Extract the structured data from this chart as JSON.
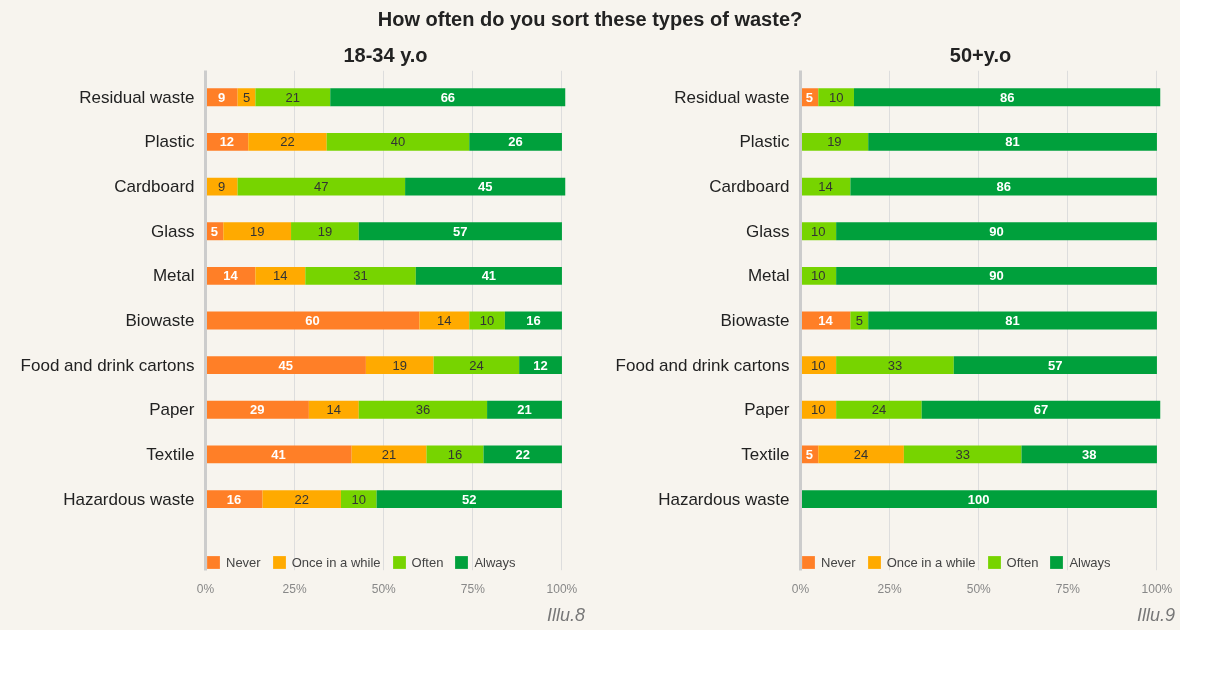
{
  "chart_data": [
    {
      "type": "bar",
      "orientation": "horizontal",
      "stacked": true,
      "title": "How often do you sort these types of waste?",
      "subtitle": "18-34 y.o",
      "categories": [
        "Residual waste",
        "Plastic",
        "Cardboard",
        "Glass",
        "Metal",
        "Biowaste",
        "Food and drink cartons",
        "Paper",
        "Textile",
        "Hazardous waste"
      ],
      "series": [
        {
          "name": "Never",
          "color": "#ff7f27",
          "values": [
            9,
            12,
            null,
            5,
            14,
            60,
            45,
            29,
            41,
            16
          ]
        },
        {
          "name": "Once in a while",
          "color": "#ffaa00",
          "values": [
            5,
            22,
            9,
            19,
            14,
            14,
            19,
            14,
            21,
            22
          ]
        },
        {
          "name": "Often",
          "color": "#77d400",
          "values": [
            21,
            40,
            47,
            19,
            31,
            10,
            24,
            36,
            16,
            10
          ]
        },
        {
          "name": "Always",
          "color": "#00a03c",
          "values": [
            66,
            26,
            45,
            57,
            41,
            16,
            12,
            21,
            22,
            52
          ]
        }
      ],
      "xlim": [
        0,
        101
      ],
      "xticks": [
        {
          "value": 0,
          "label": "0%"
        },
        {
          "value": 25,
          "label": "25%"
        },
        {
          "value": 50,
          "label": "50%"
        },
        {
          "value": 75,
          "label": "75%"
        },
        {
          "value": 100,
          "label": "100%"
        }
      ],
      "grid": "x",
      "legend": "bottom",
      "data_labels": true,
      "annotations": [
        "Illu.8"
      ]
    },
    {
      "type": "bar",
      "orientation": "horizontal",
      "stacked": true,
      "title": "50+y.o",
      "categories": [
        "Residual waste",
        "Plastic",
        "Cardboard",
        "Glass",
        "Metal",
        "Biowaste",
        "Food and drink cartons",
        "Paper",
        "Textile",
        "Hazardous waste"
      ],
      "series": [
        {
          "name": "Never",
          "color": "#ff7f27",
          "values": [
            5,
            null,
            null,
            null,
            null,
            14,
            null,
            null,
            5,
            null
          ]
        },
        {
          "name": "Once in a while",
          "color": "#ffaa00",
          "values": [
            null,
            null,
            null,
            null,
            null,
            null,
            10,
            10,
            24,
            null
          ]
        },
        {
          "name": "Often",
          "color": "#77d400",
          "values": [
            10,
            19,
            14,
            10,
            10,
            5,
            33,
            24,
            33,
            null
          ]
        },
        {
          "name": "Always",
          "color": "#00a03c",
          "values": [
            86,
            81,
            86,
            90,
            90,
            81,
            57,
            67,
            38,
            100
          ]
        }
      ],
      "xlim": [
        0,
        101
      ],
      "xticks": [
        {
          "value": 0,
          "label": "0%"
        },
        {
          "value": 25,
          "label": "25%"
        },
        {
          "value": 50,
          "label": "50%"
        },
        {
          "value": 75,
          "label": "75%"
        },
        {
          "value": 100,
          "label": "100%"
        }
      ],
      "grid": "x",
      "legend": "bottom",
      "data_labels": true,
      "annotations": [
        "Illu.9"
      ]
    }
  ]
}
